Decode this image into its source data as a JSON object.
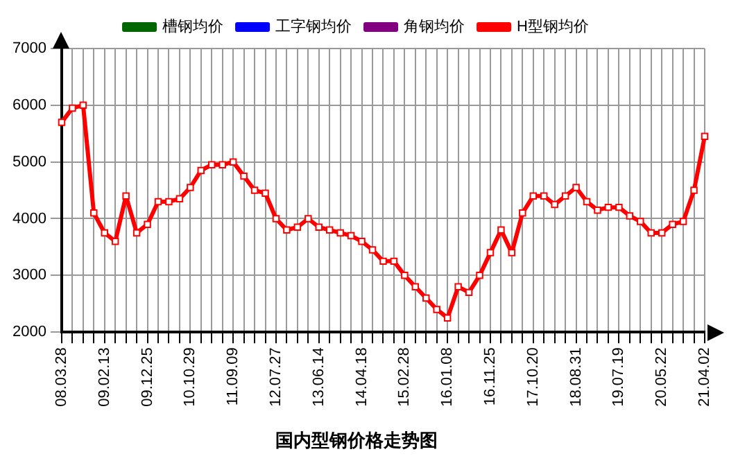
{
  "chart_data": {
    "type": "line",
    "title": "国内型钢价格走势图",
    "categories": [
      "08.03.28",
      null,
      null,
      null,
      "09.02.13",
      null,
      null,
      null,
      "09.12.25",
      null,
      null,
      null,
      "10.10.29",
      null,
      null,
      null,
      "11.09.09",
      null,
      null,
      null,
      "12.07.27",
      null,
      null,
      null,
      "13.06.14",
      null,
      null,
      null,
      "14.04.18",
      null,
      null,
      null,
      "15.02.28",
      null,
      null,
      null,
      "16.01.08",
      null,
      null,
      null,
      "16.11.25",
      null,
      null,
      null,
      "17.10.20",
      null,
      null,
      null,
      "18.08.31",
      null,
      null,
      null,
      "19.07.19",
      null,
      null,
      null,
      "20.05.22",
      null,
      null,
      null,
      "21.04.02"
    ],
    "series": [
      {
        "name": "槽钢均价",
        "color": "#006600",
        "values": [
          null,
          null,
          null,
          null,
          null,
          null,
          null,
          null,
          null,
          null,
          null,
          null,
          null,
          null,
          null,
          null,
          null,
          null,
          null,
          null,
          null,
          null,
          null,
          null,
          null,
          null,
          null,
          null,
          null,
          null,
          null,
          null,
          null,
          null,
          null,
          null,
          null,
          null,
          null,
          null,
          null,
          null,
          null,
          null,
          null,
          null,
          null,
          null,
          null,
          null,
          null,
          null,
          null,
          null,
          null,
          null,
          null,
          null,
          null,
          null,
          null
        ]
      },
      {
        "name": "工字钢均价",
        "color": "#0000ff",
        "values": [
          null,
          null,
          null,
          null,
          null,
          null,
          null,
          null,
          null,
          null,
          null,
          null,
          null,
          null,
          null,
          null,
          null,
          null,
          null,
          null,
          null,
          null,
          null,
          null,
          null,
          null,
          null,
          null,
          null,
          null,
          null,
          null,
          null,
          null,
          null,
          null,
          null,
          null,
          null,
          null,
          null,
          null,
          null,
          null,
          null,
          null,
          null,
          null,
          null,
          null,
          null,
          null,
          null,
          null,
          null,
          null,
          null,
          null,
          null,
          null,
          null
        ]
      },
      {
        "name": "角钢均价",
        "color": "#800080",
        "values": [
          null,
          null,
          null,
          null,
          null,
          null,
          null,
          null,
          null,
          null,
          null,
          null,
          null,
          null,
          null,
          null,
          null,
          null,
          null,
          null,
          null,
          null,
          null,
          null,
          null,
          null,
          null,
          null,
          null,
          null,
          null,
          null,
          null,
          null,
          null,
          null,
          null,
          null,
          null,
          null,
          null,
          null,
          null,
          null,
          null,
          null,
          null,
          null,
          null,
          null,
          null,
          null,
          null,
          null,
          null,
          null,
          null,
          null,
          null,
          null,
          null
        ]
      },
      {
        "name": "H型钢均价",
        "color": "#ff0000",
        "values": [
          5700,
          5950,
          6000,
          4100,
          3750,
          3600,
          4400,
          3750,
          3900,
          4300,
          4300,
          4350,
          4550,
          4850,
          4950,
          4950,
          5000,
          4750,
          4500,
          4450,
          4000,
          3800,
          3850,
          4000,
          3850,
          3800,
          3750,
          3700,
          3600,
          3450,
          3250,
          3250,
          3000,
          2800,
          2600,
          2400,
          2250,
          2800,
          2700,
          3000,
          3400,
          3800,
          3400,
          4100,
          4400,
          4400,
          4250,
          4400,
          4550,
          4300,
          4150,
          4200,
          4200,
          4050,
          3950,
          3750,
          3750,
          3900,
          3950,
          4500,
          5450
        ]
      }
    ],
    "ylim": [
      2000,
      7000
    ],
    "yticks": [
      2000,
      3000,
      4000,
      5000,
      6000,
      7000
    ],
    "grid": true,
    "legend": "top",
    "marker": "square",
    "line_style": "solid"
  }
}
